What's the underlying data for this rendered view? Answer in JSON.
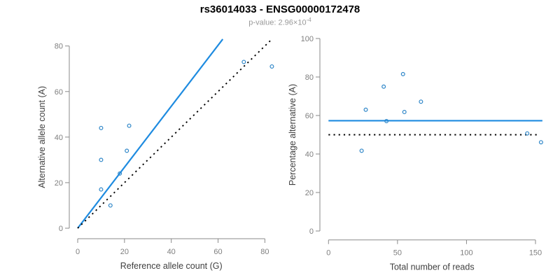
{
  "header": {
    "title": "rs36014033 - ENSG00000172478",
    "subtitle_prefix": "p-value: 2.96×10",
    "subtitle_sup": "-4"
  },
  "colors": {
    "blue": "#1E8BE0",
    "point": "#2E86C8",
    "black": "#000000",
    "axis": "#8A8A8A",
    "tick_label": "#7F7F7F",
    "axis_title": "#404040",
    "title": "#000000",
    "subtitle": "#999999"
  },
  "chart_data": [
    {
      "type": "scatter",
      "title": "",
      "xlabel": "Reference allele count (G)",
      "ylabel": "Alternative allele count (A)",
      "xlim": [
        0,
        83
      ],
      "ylim": [
        0,
        83
      ],
      "xticks": [
        0,
        20,
        40,
        60,
        80
      ],
      "yticks": [
        0,
        20,
        40,
        60,
        80
      ],
      "grid": false,
      "legend": "none",
      "points": [
        [
          10,
          44
        ],
        [
          22,
          45
        ],
        [
          10,
          30
        ],
        [
          21,
          34
        ],
        [
          18,
          24
        ],
        [
          10,
          17
        ],
        [
          14,
          10
        ],
        [
          71,
          73
        ],
        [
          83,
          71
        ]
      ],
      "lines": [
        {
          "name": "fitted-ratio-line",
          "style": "solid",
          "color_key": "blue",
          "x1": 0,
          "y1": 0,
          "x2": 62,
          "y2": 83
        },
        {
          "name": "identity-line",
          "style": "dotted",
          "color_key": "black",
          "x1": 0,
          "y1": 0,
          "x2": 83,
          "y2": 83
        }
      ]
    },
    {
      "type": "scatter",
      "title": "",
      "xlabel": "Total number of reads",
      "ylabel": "Percentage alternative (A)",
      "xlim": [
        0,
        155
      ],
      "ylim": [
        0,
        100
      ],
      "xticks": [
        0,
        50,
        100,
        150
      ],
      "yticks": [
        0,
        20,
        40,
        60,
        80,
        100
      ],
      "grid": false,
      "legend": "none",
      "points": [
        [
          54,
          81.5
        ],
        [
          40,
          75
        ],
        [
          67,
          67.2
        ],
        [
          27,
          63
        ],
        [
          55,
          61.8
        ],
        [
          42,
          57.1
        ],
        [
          144,
          50.7
        ],
        [
          154,
          46.1
        ],
        [
          24,
          41.7
        ]
      ],
      "lines": [
        {
          "name": "fitted-percentage-line",
          "style": "solid",
          "color_key": "blue",
          "x1": 0,
          "y1": 57.3,
          "x2": 155,
          "y2": 57.3
        },
        {
          "name": "null-percentage-line",
          "style": "dotted",
          "color_key": "black",
          "x1": 0,
          "y1": 50,
          "x2": 152,
          "y2": 50
        }
      ]
    }
  ]
}
